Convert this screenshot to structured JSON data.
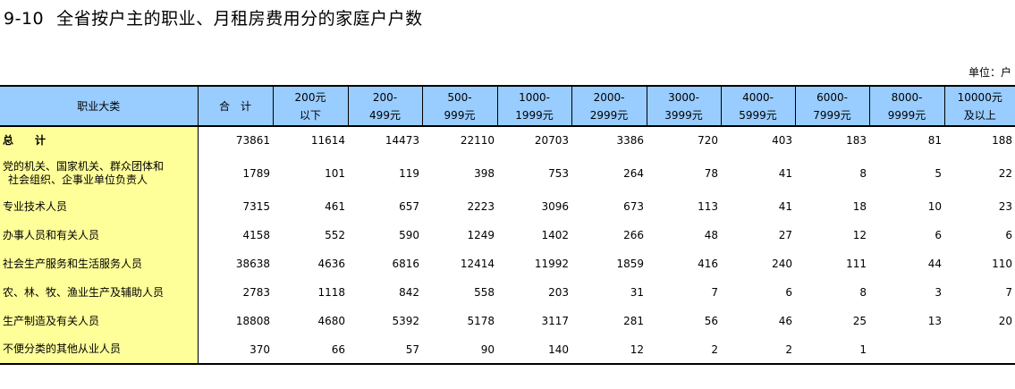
{
  "title": {
    "number": "9-10",
    "text": "全省按户主的职业、月租房费用分的家庭户户数"
  },
  "unit": "单位：户",
  "headers": [
    {
      "line1": "职业大类",
      "line2": ""
    },
    {
      "line1": "合　计",
      "line2": ""
    },
    {
      "line1": "200元",
      "line2": "以下"
    },
    {
      "line1": "200-",
      "line2": "499元"
    },
    {
      "line1": "500-",
      "line2": "999元"
    },
    {
      "line1": "1000-",
      "line2": "1999元"
    },
    {
      "line1": "2000-",
      "line2": "2999元"
    },
    {
      "line1": "3000-",
      "line2": "3999元"
    },
    {
      "line1": "4000-",
      "line2": "5999元"
    },
    {
      "line1": "6000-",
      "line2": "7999元"
    },
    {
      "line1": "8000-",
      "line2": "9999元"
    },
    {
      "line1": "10000元",
      "line2": "及以上"
    }
  ],
  "rows": [
    {
      "label": "总　计",
      "label2": "",
      "values": [
        "73861",
        "11614",
        "14473",
        "22110",
        "20703",
        "3386",
        "720",
        "403",
        "183",
        "81",
        "188"
      ]
    },
    {
      "label": "党的机关、国家机关、群众团体和",
      "label2": "社会组织、企事业单位负责人",
      "values": [
        "1789",
        "101",
        "119",
        "398",
        "753",
        "264",
        "78",
        "41",
        "8",
        "5",
        "22"
      ]
    },
    {
      "label": "专业技术人员",
      "label2": "",
      "values": [
        "7315",
        "461",
        "657",
        "2223",
        "3096",
        "673",
        "113",
        "41",
        "18",
        "10",
        "23"
      ]
    },
    {
      "label": "办事人员和有关人员",
      "label2": "",
      "values": [
        "4158",
        "552",
        "590",
        "1249",
        "1402",
        "266",
        "48",
        "27",
        "12",
        "6",
        "6"
      ]
    },
    {
      "label": "社会生产服务和生活服务人员",
      "label2": "",
      "values": [
        "38638",
        "4636",
        "6816",
        "12414",
        "11992",
        "1859",
        "416",
        "240",
        "111",
        "44",
        "110"
      ]
    },
    {
      "label": "农、林、牧、渔业生产及辅助人员",
      "label2": "",
      "values": [
        "2783",
        "1118",
        "842",
        "558",
        "203",
        "31",
        "7",
        "6",
        "8",
        "3",
        "7"
      ]
    },
    {
      "label": "生产制造及有关人员",
      "label2": "",
      "values": [
        "18808",
        "4680",
        "5392",
        "5178",
        "3117",
        "281",
        "56",
        "46",
        "25",
        "13",
        "20"
      ]
    },
    {
      "label": "不便分类的其他从业人员",
      "label2": "",
      "values": [
        "370",
        "66",
        "57",
        "90",
        "140",
        "12",
        "2",
        "2",
        "1",
        "",
        ""
      ]
    }
  ]
}
